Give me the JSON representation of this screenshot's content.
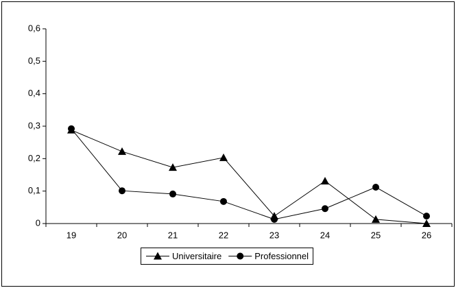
{
  "chart_data": {
    "type": "line",
    "categories": [
      "19",
      "20",
      "21",
      "22",
      "23",
      "24",
      "25",
      "26"
    ],
    "series": [
      {
        "name": "Universitaire",
        "color": "#000000",
        "marker": "triangle",
        "values": [
          0.288,
          0.222,
          0.173,
          0.203,
          0.023,
          0.131,
          0.013,
          0
        ]
      },
      {
        "name": "Professionnel",
        "color": "#000000",
        "marker": "circle",
        "values": [
          0.292,
          0.101,
          0.091,
          0.068,
          0.013,
          0.046,
          0.112,
          0.023
        ]
      }
    ],
    "ylim": [
      0,
      0.6
    ],
    "yticks": [
      0,
      {
        "value": 0.1,
        "label": "0,1"
      },
      {
        "value": 0.2,
        "label": "0,2"
      },
      {
        "value": 0.3,
        "label": "0,3"
      },
      {
        "value": 0.4,
        "label": "0,4"
      },
      {
        "value": 0.5,
        "label": "0,5"
      },
      {
        "value": 0.6,
        "label": "0,6"
      }
    ],
    "grid": false,
    "legend": "bottom"
  }
}
